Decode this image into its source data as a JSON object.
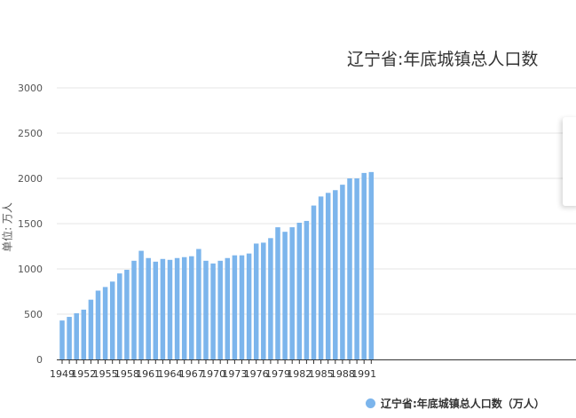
{
  "colors": {
    "series": "#7cb5ec",
    "grid": "#e6e6e6",
    "axis": "#333333",
    "text": "#555555"
  },
  "chart_data": {
    "type": "bar",
    "title": "辽宁省:年底城镇总人口数",
    "ylabel": "单位: 万人",
    "xlabel": "",
    "ylim": [
      0,
      3000
    ],
    "yticks": [
      "0",
      "500",
      "1000",
      "1500",
      "2000",
      "2500",
      "3000"
    ],
    "grid": true,
    "legend_position": "bottom-right",
    "series": [
      {
        "name": "辽宁省:年底城镇总人口数（万人）",
        "values": [
          430,
          470,
          510,
          550,
          660,
          760,
          800,
          860,
          950,
          990,
          1090,
          1200,
          1120,
          1080,
          1110,
          1100,
          1120,
          1130,
          1140,
          1220,
          1090,
          1060,
          1090,
          1120,
          1150,
          1150,
          1170,
          1280,
          1290,
          1340,
          1460,
          1410,
          1460,
          1510,
          1530,
          1700,
          1800,
          1840,
          1870,
          1930,
          2000,
          2000,
          2060,
          2070
        ]
      }
    ],
    "x": [
      "1949",
      "1950",
      "1951",
      "1952",
      "1953",
      "1954",
      "1955",
      "1956",
      "1957",
      "1958",
      "1959",
      "1960",
      "1961",
      "1962",
      "1963",
      "1964",
      "1965",
      "1966",
      "1967",
      "1968",
      "1969",
      "1970",
      "1971",
      "1972",
      "1973",
      "1974",
      "1975",
      "1976",
      "1977",
      "1978",
      "1979",
      "1980",
      "1981",
      "1982",
      "1983",
      "1984",
      "1985",
      "1986",
      "1987",
      "1988",
      "1989",
      "1990",
      "1991",
      "1992"
    ],
    "xtick_labels": [
      "1949",
      "1952",
      "1955",
      "1958",
      "1961",
      "1964",
      "1967",
      "1970",
      "1973",
      "1976",
      "1979",
      "1982",
      "1985",
      "1988",
      "1991"
    ]
  }
}
